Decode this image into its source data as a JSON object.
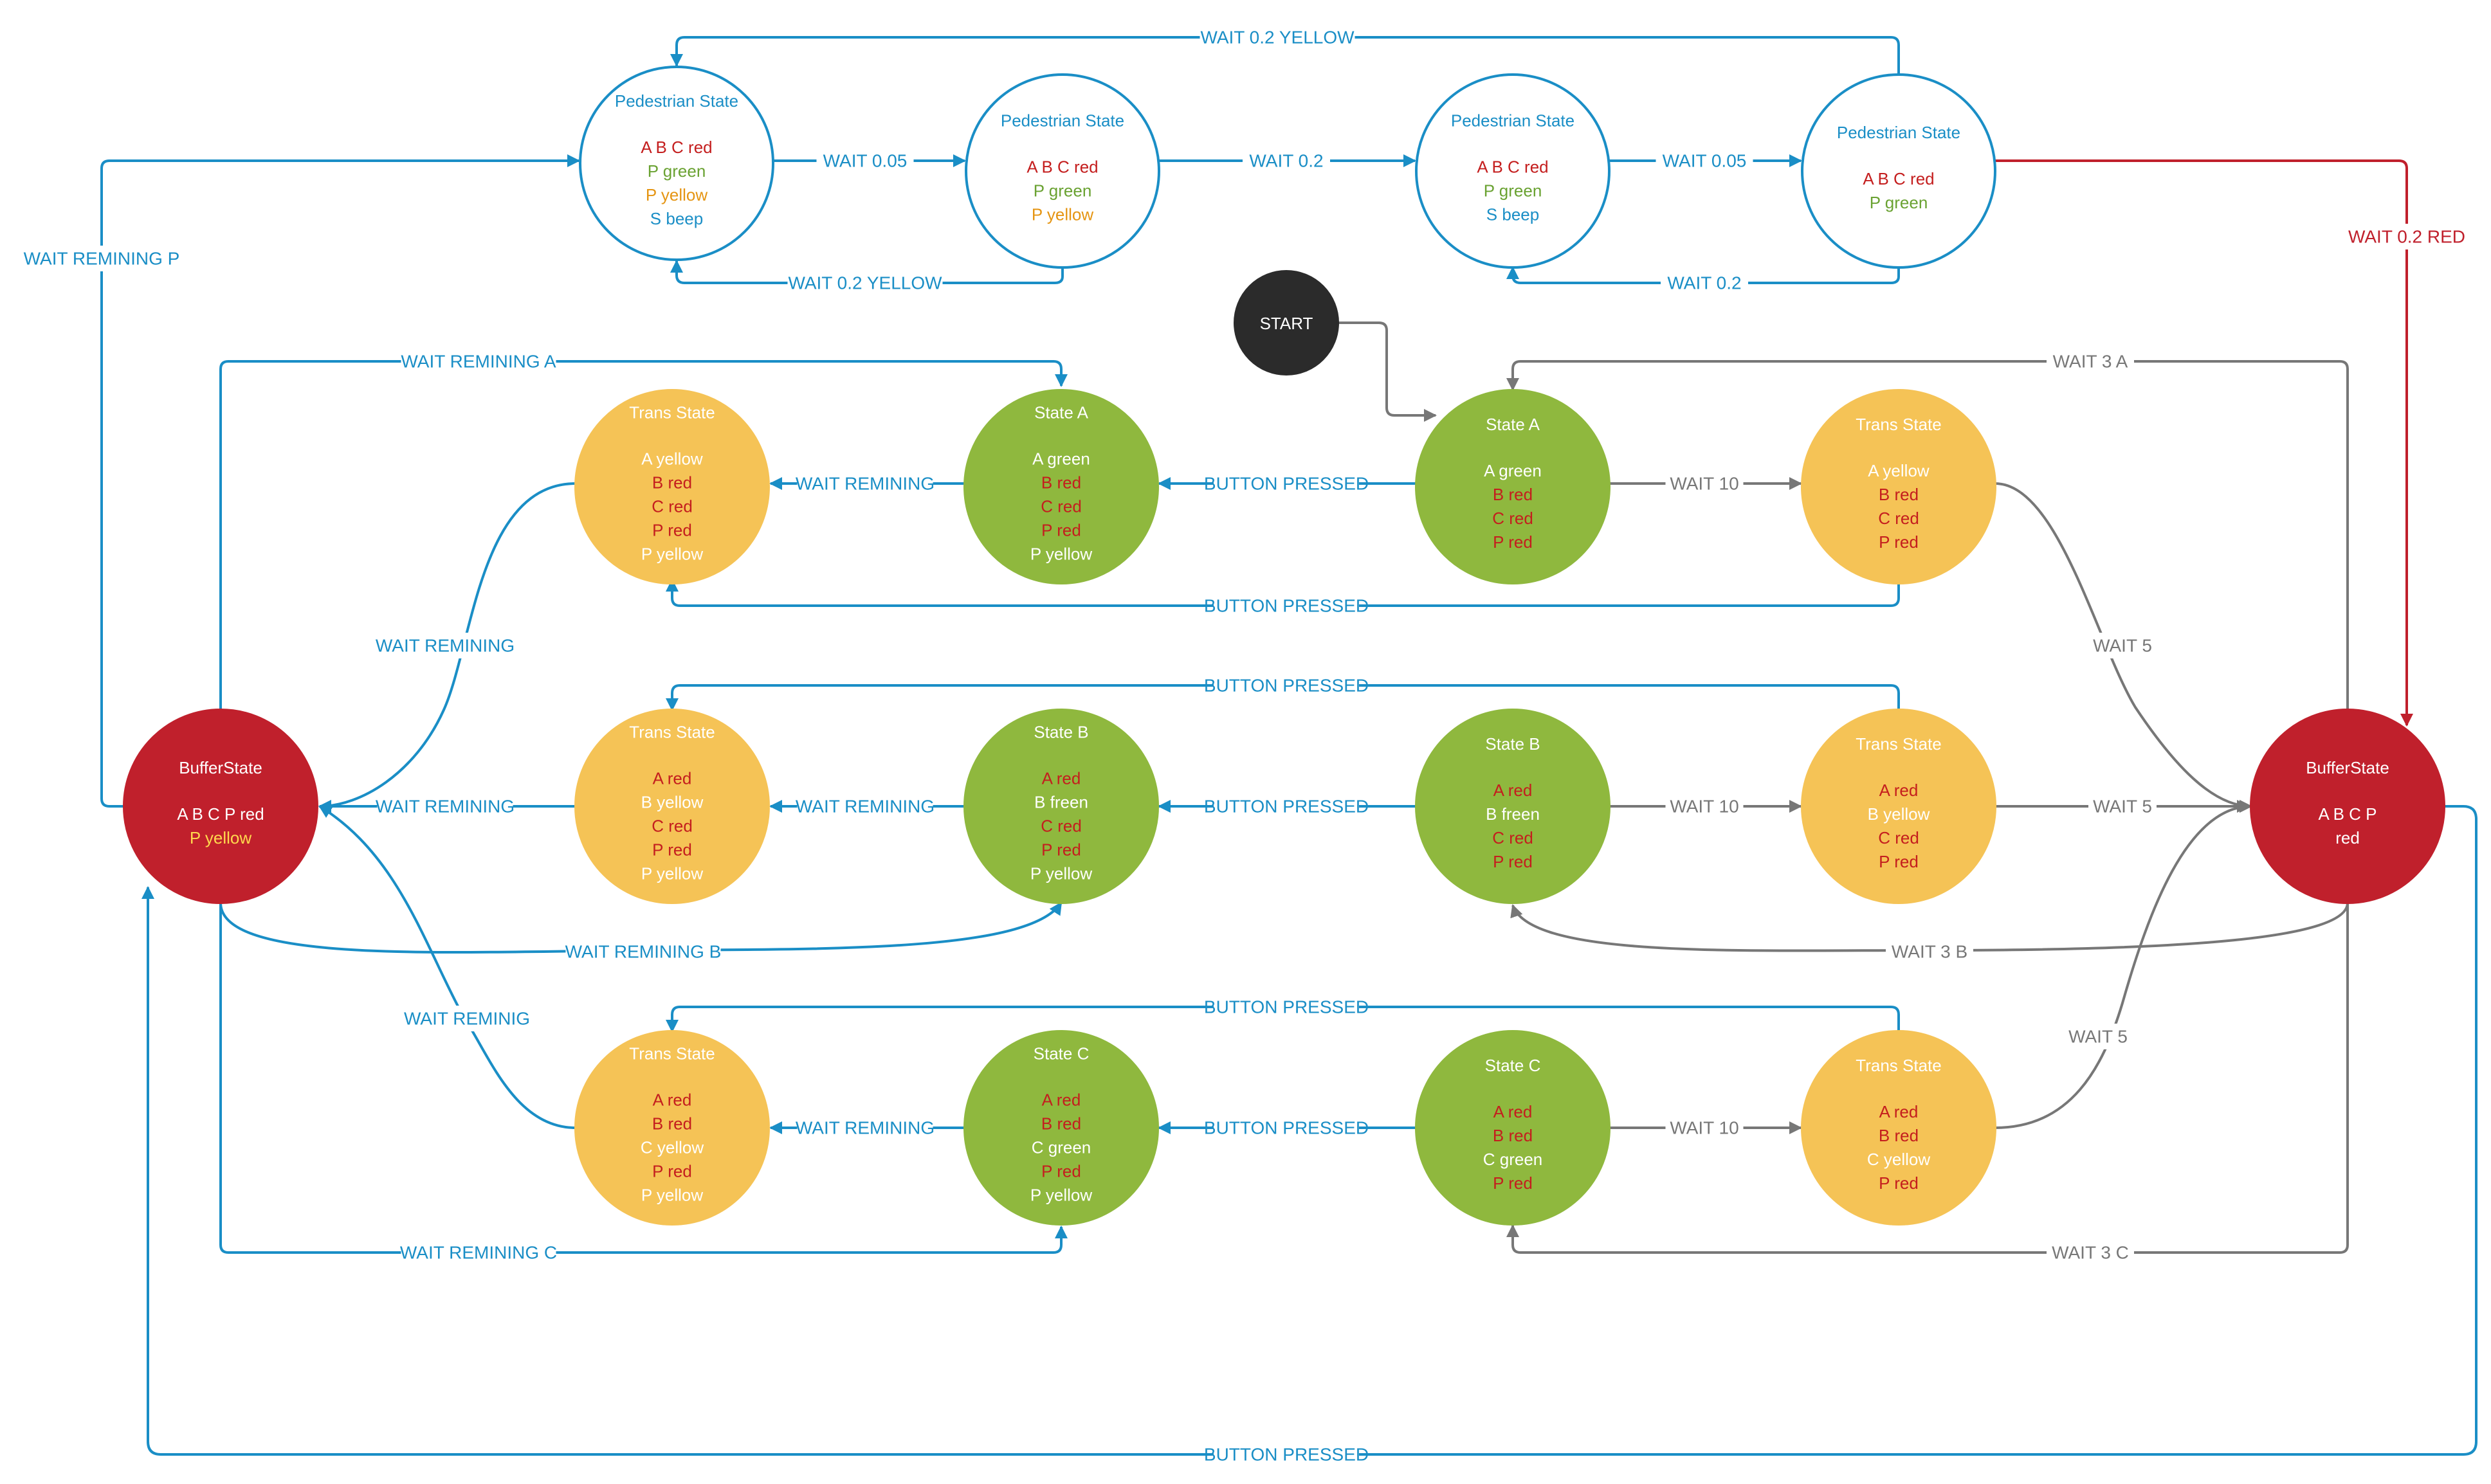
{
  "colors": {
    "blue": "#1a8ec6",
    "gray": "#777777",
    "red": "#c0202c",
    "green": "#8fb83e",
    "yellow": "#f5c356",
    "dark": "#2b2b2b",
    "text_red": "#c41e1e",
    "text_green": "#6aa232",
    "text_orange": "#e59513",
    "text_blue": "#1a8ec6",
    "text_yellow_light": "#ffd84d",
    "white": "#ffffff"
  },
  "nodes": [
    {
      "id": "ped1",
      "title": "Pedestrian State",
      "style": "outline",
      "lines": [
        {
          "t": "A B C red",
          "c": "text_red"
        },
        {
          "t": "P green",
          "c": "text_green"
        },
        {
          "t": "P yellow",
          "c": "text_orange"
        },
        {
          "t": "S beep",
          "c": "text_blue"
        }
      ]
    },
    {
      "id": "ped2",
      "title": "Pedestrian State",
      "style": "outline",
      "lines": [
        {
          "t": "A B C red",
          "c": "text_red"
        },
        {
          "t": "P green",
          "c": "text_green"
        },
        {
          "t": "P yellow",
          "c": "text_orange"
        }
      ]
    },
    {
      "id": "ped3",
      "title": "Pedestrian State",
      "style": "outline",
      "lines": [
        {
          "t": "A B C red",
          "c": "text_red"
        },
        {
          "t": "P green",
          "c": "text_green"
        },
        {
          "t": "S beep",
          "c": "text_blue"
        }
      ]
    },
    {
      "id": "ped4",
      "title": "Pedestrian State",
      "style": "outline",
      "lines": [
        {
          "t": "A B C red",
          "c": "text_red"
        },
        {
          "t": "P green",
          "c": "text_green"
        }
      ]
    },
    {
      "id": "start",
      "title": "START",
      "style": "dark",
      "lines": []
    },
    {
      "id": "transA_l",
      "title": "Trans State",
      "style": "yellow",
      "lines": [
        {
          "t": "A yellow",
          "c": "white"
        },
        {
          "t": "B red",
          "c": "text_red"
        },
        {
          "t": "C red",
          "c": "text_red"
        },
        {
          "t": "P red",
          "c": "text_red"
        },
        {
          "t": "P yellow",
          "c": "white"
        }
      ]
    },
    {
      "id": "stateA_l",
      "title": "State A",
      "style": "green",
      "lines": [
        {
          "t": "A green",
          "c": "white"
        },
        {
          "t": "B red",
          "c": "text_red"
        },
        {
          "t": "C red",
          "c": "text_red"
        },
        {
          "t": "P red",
          "c": "text_red"
        },
        {
          "t": "P yellow",
          "c": "white"
        }
      ]
    },
    {
      "id": "stateA_r",
      "title": "State A",
      "style": "green",
      "lines": [
        {
          "t": "A green",
          "c": "white"
        },
        {
          "t": "B red",
          "c": "text_red"
        },
        {
          "t": "C red",
          "c": "text_red"
        },
        {
          "t": "P red",
          "c": "text_red"
        }
      ]
    },
    {
      "id": "transA_r",
      "title": "Trans State",
      "style": "yellow",
      "lines": [
        {
          "t": "A yellow",
          "c": "white"
        },
        {
          "t": "B red",
          "c": "text_red"
        },
        {
          "t": "C red",
          "c": "text_red"
        },
        {
          "t": "P red",
          "c": "text_red"
        }
      ]
    },
    {
      "id": "bufL",
      "title": "BufferState",
      "style": "red",
      "lines": [
        {
          "t": "A B C P red",
          "c": "white"
        },
        {
          "t": "P yellow",
          "c": "text_yellow_light"
        }
      ]
    },
    {
      "id": "transB_l",
      "title": "Trans State",
      "style": "yellow",
      "lines": [
        {
          "t": "A red",
          "c": "text_red"
        },
        {
          "t": "B yellow",
          "c": "white"
        },
        {
          "t": "C red",
          "c": "text_red"
        },
        {
          "t": "P red",
          "c": "text_red"
        },
        {
          "t": "P yellow",
          "c": "white"
        }
      ]
    },
    {
      "id": "stateB_l",
      "title": "State B",
      "style": "green",
      "lines": [
        {
          "t": "A red",
          "c": "text_red"
        },
        {
          "t": "B freen",
          "c": "white"
        },
        {
          "t": "C red",
          "c": "text_red"
        },
        {
          "t": "P red",
          "c": "text_red"
        },
        {
          "t": "P yellow",
          "c": "white"
        }
      ]
    },
    {
      "id": "stateB_r",
      "title": "State B",
      "style": "green",
      "lines": [
        {
          "t": "A red",
          "c": "text_red"
        },
        {
          "t": "B freen",
          "c": "white"
        },
        {
          "t": "C red",
          "c": "text_red"
        },
        {
          "t": "P red",
          "c": "text_red"
        }
      ]
    },
    {
      "id": "transB_r",
      "title": "Trans State",
      "style": "yellow",
      "lines": [
        {
          "t": "A red",
          "c": "text_red"
        },
        {
          "t": "B yellow",
          "c": "white"
        },
        {
          "t": "C red",
          "c": "text_red"
        },
        {
          "t": "P red",
          "c": "text_red"
        }
      ]
    },
    {
      "id": "bufR",
      "title": "BufferState",
      "style": "red",
      "lines": [
        {
          "t": "A B C P",
          "c": "white"
        },
        {
          "t": "red",
          "c": "white"
        }
      ]
    },
    {
      "id": "transC_l",
      "title": "Trans State",
      "style": "yellow",
      "lines": [
        {
          "t": "A red",
          "c": "text_red"
        },
        {
          "t": "B red",
          "c": "text_red"
        },
        {
          "t": "C yellow",
          "c": "white"
        },
        {
          "t": "P red",
          "c": "text_red"
        },
        {
          "t": "P yellow",
          "c": "white"
        }
      ]
    },
    {
      "id": "stateC_l",
      "title": "State C",
      "style": "green",
      "lines": [
        {
          "t": "A red",
          "c": "text_red"
        },
        {
          "t": "B red",
          "c": "text_red"
        },
        {
          "t": "C green",
          "c": "white"
        },
        {
          "t": "P red",
          "c": "text_red"
        },
        {
          "t": "P yellow",
          "c": "white"
        }
      ]
    },
    {
      "id": "stateC_r",
      "title": "State C",
      "style": "green",
      "lines": [
        {
          "t": "A red",
          "c": "text_red"
        },
        {
          "t": "B red",
          "c": "text_red"
        },
        {
          "t": "C green",
          "c": "white"
        },
        {
          "t": "P red",
          "c": "text_red"
        }
      ]
    },
    {
      "id": "transC_r",
      "title": "Trans State",
      "style": "yellow",
      "lines": [
        {
          "t": "A red",
          "c": "text_red"
        },
        {
          "t": "B red",
          "c": "text_red"
        },
        {
          "t": "C yellow",
          "c": "white"
        },
        {
          "t": "P red",
          "c": "text_red"
        }
      ]
    }
  ],
  "edges": [
    {
      "id": "e_p4_p1",
      "label": "WAIT 0.2 YELLOW",
      "color": "blue"
    },
    {
      "id": "e_p1_p2",
      "label": "WAIT 0.05",
      "color": "blue"
    },
    {
      "id": "e_p2_p3",
      "label": "WAIT 0.2",
      "color": "blue"
    },
    {
      "id": "e_p3_p4",
      "label": "WAIT 0.05",
      "color": "blue"
    },
    {
      "id": "e_p2_p1",
      "label": "WAIT 0.2 YELLOW",
      "color": "blue"
    },
    {
      "id": "e_p4_p3",
      "label": "WAIT 0.2",
      "color": "blue"
    },
    {
      "id": "e_p4_bufR",
      "label": "WAIT 0.2 RED",
      "color": "red"
    },
    {
      "id": "e_bufL_p1",
      "label": "WAIT REMINING P",
      "color": "blue"
    },
    {
      "id": "e_start_A",
      "label": "",
      "color": "gray"
    },
    {
      "id": "e_bufL_stateAl",
      "label": "WAIT REMINING A",
      "color": "blue"
    },
    {
      "id": "e_bufR_stateAr",
      "label": "WAIT 3 A",
      "color": "gray"
    },
    {
      "id": "e_stateAl_transAl",
      "label": "WAIT REMINING",
      "color": "blue"
    },
    {
      "id": "e_stateAr_stateAl",
      "label": "BUTTON PRESSED",
      "color": "blue"
    },
    {
      "id": "e_stateAr_transAr",
      "label": "WAIT 10",
      "color": "gray"
    },
    {
      "id": "e_transAr_transAl",
      "label": "BUTTON PRESSED",
      "color": "blue"
    },
    {
      "id": "e_transAl_bufL",
      "label": "WAIT REMINING",
      "color": "blue"
    },
    {
      "id": "e_transAr_bufR",
      "label": "WAIT 5",
      "color": "gray"
    },
    {
      "id": "e_transBr_transBl",
      "label": "BUTTON PRESSED",
      "color": "blue"
    },
    {
      "id": "e_transBl_bufL",
      "label": "WAIT REMINING",
      "color": "blue"
    },
    {
      "id": "e_stateBl_transBl",
      "label": "WAIT REMINING",
      "color": "blue"
    },
    {
      "id": "e_stateBr_stateBl",
      "label": "BUTTON PRESSED",
      "color": "blue"
    },
    {
      "id": "e_stateBr_transBr",
      "label": "WAIT 10",
      "color": "gray"
    },
    {
      "id": "e_transBr_bufR",
      "label": "WAIT 5",
      "color": "gray"
    },
    {
      "id": "e_bufL_stateBl",
      "label": "WAIT REMINING B",
      "color": "blue"
    },
    {
      "id": "e_bufR_stateBr",
      "label": "WAIT 3 B",
      "color": "gray"
    },
    {
      "id": "e_transCl_bufL",
      "label": "WAIT REMINIG",
      "color": "blue"
    },
    {
      "id": "e_transCr_transCl",
      "label": "BUTTON PRESSED",
      "color": "blue"
    },
    {
      "id": "e_stateCl_transCl",
      "label": "WAIT REMINING",
      "color": "blue"
    },
    {
      "id": "e_stateCr_stateCl",
      "label": "BUTTON PRESSED",
      "color": "blue"
    },
    {
      "id": "e_stateCr_transCr",
      "label": "WAIT 10",
      "color": "gray"
    },
    {
      "id": "e_transCr_bufR",
      "label": "WAIT 5",
      "color": "gray"
    },
    {
      "id": "e_bufL_stateCl",
      "label": "WAIT REMINING C",
      "color": "blue"
    },
    {
      "id": "e_bufR_stateCr",
      "label": "WAIT 3 C",
      "color": "gray"
    },
    {
      "id": "e_bufR_bufL",
      "label": "BUTTON PRESSED",
      "color": "blue"
    }
  ]
}
